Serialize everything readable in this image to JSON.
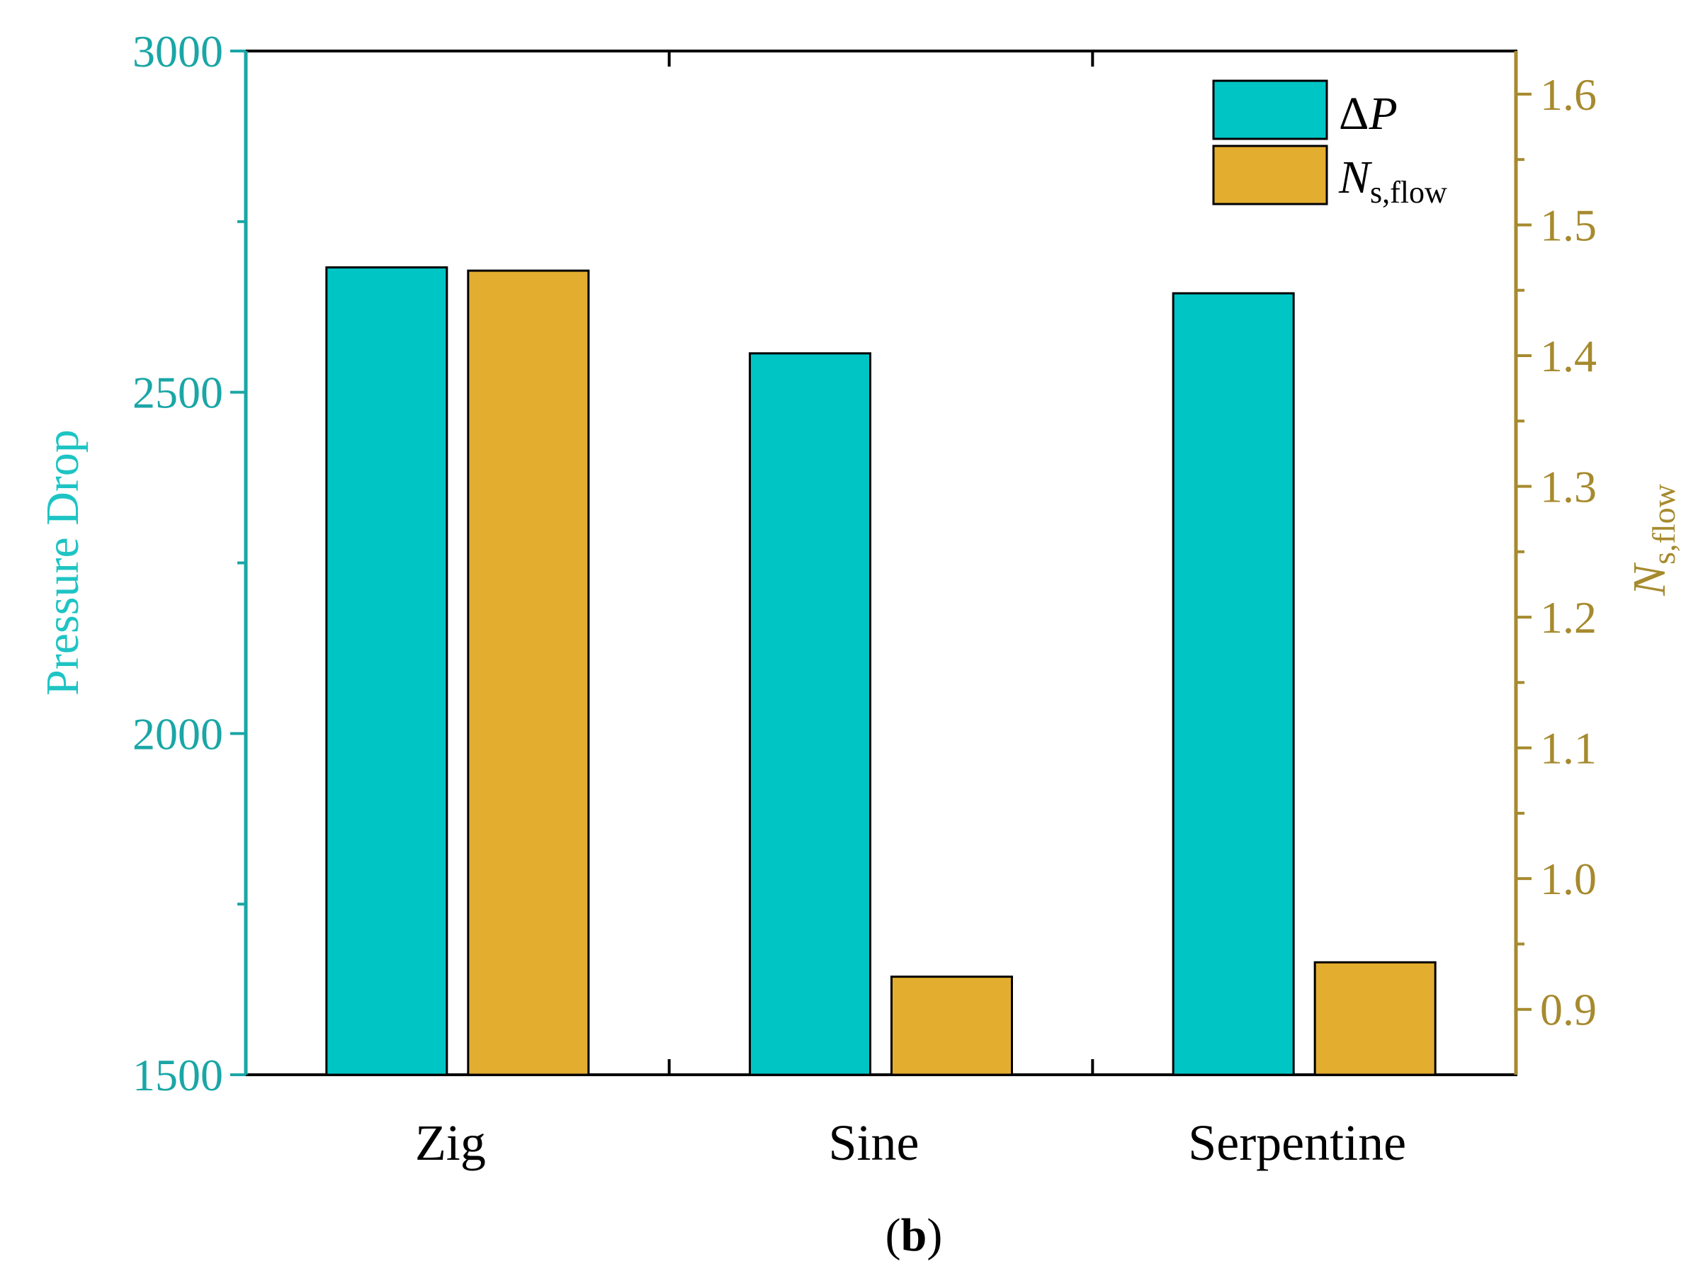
{
  "chart_data": {
    "type": "bar",
    "categories": [
      "Zig",
      "Sine",
      "Serpentine"
    ],
    "series": [
      {
        "name": "ΔP",
        "axis": "left",
        "color": "#00c5c5",
        "values": [
          2683,
          2557,
          2645
        ]
      },
      {
        "name": "Ns,flow",
        "axis": "right",
        "color": "#e3ad2f",
        "values": [
          1.465,
          0.925,
          0.936
        ]
      }
    ],
    "left_axis": {
      "label": "Pressure Drop",
      "range": [
        1500,
        3000
      ],
      "ticks": [
        "1500",
        "2000",
        "2500",
        "3000"
      ],
      "tick_values": [
        1500,
        2000,
        2500,
        3000
      ],
      "minor_tick_values": [
        1750,
        2250,
        2750
      ],
      "color": "#1aa6a6"
    },
    "right_axis": {
      "label_main": "N",
      "label_sub": "s,flow",
      "range": [
        0.85,
        1.633
      ],
      "ticks": [
        "0.9",
        "1.0",
        "1.1",
        "1.2",
        "1.3",
        "1.4",
        "1.5",
        "1.6"
      ],
      "tick_values": [
        0.9,
        1.0,
        1.1,
        1.2,
        1.3,
        1.4,
        1.5,
        1.6
      ],
      "minor_tick_values": [
        0.95,
        1.05,
        1.15,
        1.25,
        1.35,
        1.45,
        1.55
      ],
      "color": "#a68a2e"
    },
    "legend": {
      "position": "top-right",
      "items": [
        {
          "main": "ΔP",
          "prefix": "Δ",
          "italic": "P",
          "sub": ""
        },
        {
          "main": "N",
          "prefix": "",
          "italic": "N",
          "sub": "s,flow"
        }
      ]
    },
    "grid": false
  },
  "caption": {
    "open": "(",
    "letter": "b",
    "close": ")"
  }
}
